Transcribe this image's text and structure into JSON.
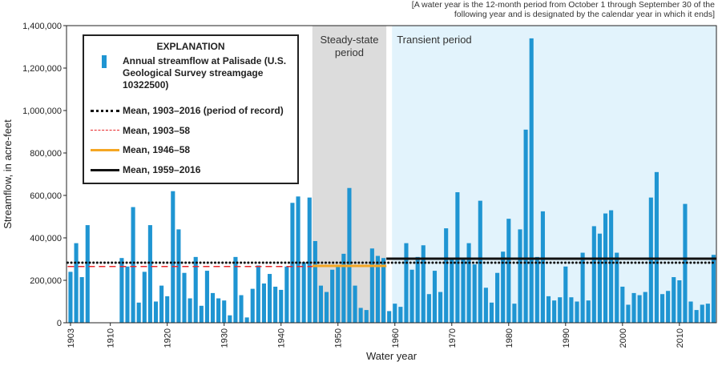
{
  "chart_data": {
    "type": "bar",
    "note": [
      "[A water year is the 12-month period from October 1 through September 30 of the",
      "following year and is designated by the calendar year in which it ends]"
    ],
    "xlabel": "Water year",
    "ylabel": "Streamflow, in acre-feet",
    "legend_title": "EXPLANATION",
    "x": [
      1903,
      1904,
      1905,
      1906,
      1907,
      1908,
      1909,
      1910,
      1911,
      1912,
      1913,
      1914,
      1915,
      1916,
      1917,
      1918,
      1919,
      1920,
      1921,
      1922,
      1923,
      1924,
      1925,
      1926,
      1927,
      1928,
      1929,
      1930,
      1931,
      1932,
      1933,
      1934,
      1935,
      1936,
      1937,
      1938,
      1939,
      1940,
      1941,
      1942,
      1943,
      1944,
      1945,
      1946,
      1947,
      1948,
      1949,
      1950,
      1951,
      1952,
      1953,
      1954,
      1955,
      1956,
      1957,
      1958,
      1959,
      1960,
      1961,
      1962,
      1963,
      1964,
      1965,
      1966,
      1967,
      1968,
      1969,
      1970,
      1971,
      1972,
      1973,
      1974,
      1975,
      1976,
      1977,
      1978,
      1979,
      1980,
      1981,
      1982,
      1983,
      1984,
      1985,
      1986,
      1987,
      1988,
      1989,
      1990,
      1991,
      1992,
      1993,
      1994,
      1995,
      1996,
      1997,
      1998,
      1999,
      2000,
      2001,
      2002,
      2003,
      2004,
      2005,
      2006,
      2007,
      2008,
      2009,
      2010,
      2011,
      2012,
      2013,
      2014,
      2015,
      2016
    ],
    "series": [
      {
        "name": "Annual streamflow at Palisade (U.S. Geological Survey streamgage 10322500)",
        "color": "#1f95d2",
        "values": [
          240000,
          375000,
          215000,
          460000,
          null,
          null,
          null,
          null,
          null,
          305000,
          265000,
          545000,
          95000,
          240000,
          460000,
          100000,
          175000,
          125000,
          620000,
          440000,
          235000,
          115000,
          310000,
          80000,
          245000,
          140000,
          115000,
          105000,
          35000,
          310000,
          130000,
          25000,
          160000,
          270000,
          185000,
          230000,
          170000,
          155000,
          265000,
          565000,
          595000,
          285000,
          590000,
          385000,
          175000,
          145000,
          250000,
          265000,
          325000,
          635000,
          175000,
          70000,
          60000,
          350000,
          315000,
          305000,
          55000,
          90000,
          75000,
          375000,
          250000,
          310000,
          365000,
          135000,
          245000,
          145000,
          445000,
          305000,
          615000,
          300000,
          375000,
          275000,
          575000,
          165000,
          95000,
          235000,
          335000,
          490000,
          90000,
          440000,
          910000,
          1340000,
          310000,
          525000,
          125000,
          105000,
          120000,
          265000,
          120000,
          100000,
          330000,
          105000,
          455000,
          420000,
          515000,
          530000,
          330000,
          170000,
          85000,
          140000,
          130000,
          145000,
          590000,
          710000,
          135000,
          150000,
          215000,
          200000,
          560000,
          100000,
          60000,
          85000,
          90000,
          320000
        ]
      }
    ],
    "mean_lines": [
      {
        "name": "Mean, 1903–2016 (period of record)",
        "color": "#111111",
        "style": "dotted",
        "start": 1903,
        "end": 2016,
        "value": 283000
      },
      {
        "name": "Mean, 1903–58",
        "color": "#e8282b",
        "style": "dashed",
        "start": 1903,
        "end": 1958,
        "value": 265000
      },
      {
        "name": "Mean, 1946–58",
        "color": "#f5a623",
        "style": "solid",
        "start": 1946,
        "end": 1958,
        "value": 268000
      },
      {
        "name": "Mean, 1959–2016",
        "color": "#111111",
        "style": "solid",
        "start": 1959,
        "end": 2016,
        "value": 302000
      }
    ],
    "shaded_regions": [
      {
        "label": "Steady-state period",
        "start": 1946,
        "end": 1958,
        "color": "#dcdcdc"
      },
      {
        "label": "Transient period",
        "start": 1960,
        "end": 2016,
        "color": "#e2f3fc"
      }
    ],
    "xlim": [
      1902.3,
      2016.5
    ],
    "xticks": [
      1903,
      1910,
      1920,
      1930,
      1940,
      1950,
      1960,
      1970,
      1980,
      1990,
      2000,
      2010
    ],
    "ylim": [
      0,
      1400000
    ],
    "yticks": [
      0,
      {
        "value": 200000,
        "label": "200,000"
      },
      {
        "value": 400000,
        "label": "400,000"
      },
      {
        "value": 600000,
        "label": "600,000"
      },
      {
        "value": 800000,
        "label": "800,000"
      },
      {
        "value": 1000000,
        "label": "1,000,000"
      },
      {
        "value": 1200000,
        "label": "1,200,000"
      },
      {
        "value": 1400000,
        "label": "1,400,000"
      }
    ]
  }
}
